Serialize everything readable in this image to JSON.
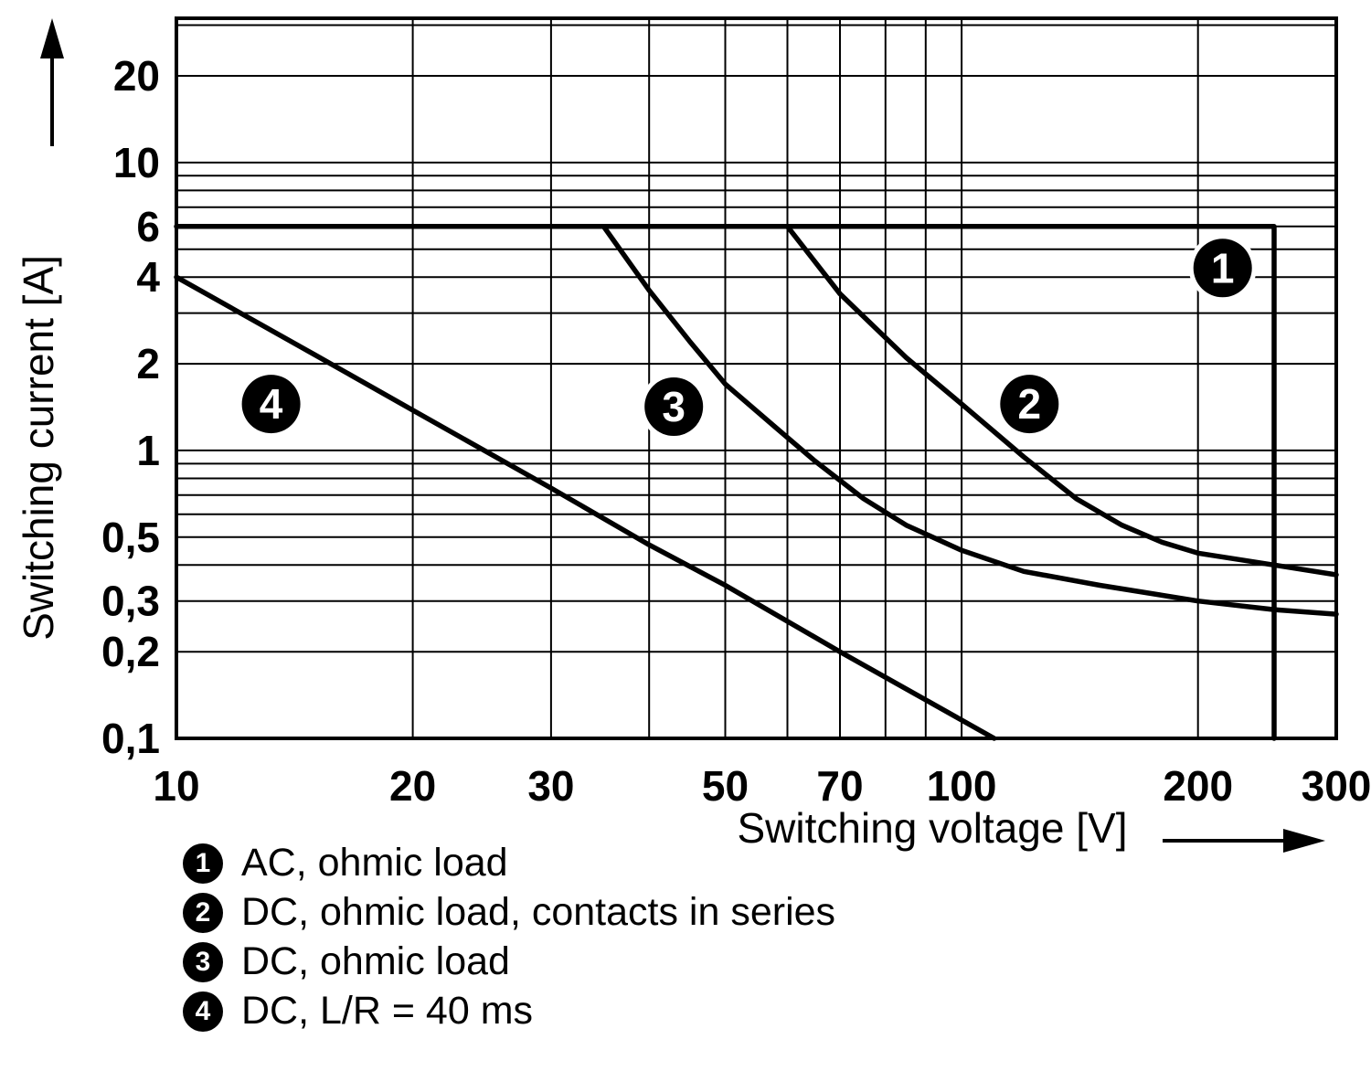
{
  "figure": {
    "background": "#ffffff",
    "ink_color": "#000000"
  },
  "chart_data": {
    "type": "line",
    "scale": "log-log",
    "grid": true,
    "legend_position": "bottom-left",
    "x_axis": {
      "label": "Switching voltage [V]",
      "scale": "log",
      "min": 10,
      "max": 300,
      "tick_values": [
        10,
        20,
        30,
        50,
        70,
        100,
        200,
        300
      ],
      "tick_labels": [
        "10",
        "20",
        "30",
        "50",
        "70",
        "100",
        "200",
        "300"
      ],
      "gridline_values": [
        10,
        20,
        30,
        40,
        50,
        60,
        70,
        80,
        90,
        100,
        200,
        300
      ]
    },
    "y_axis": {
      "label": "Switching current [A]",
      "scale": "log",
      "min": 0.1,
      "max": 31.7,
      "tick_values": [
        20,
        10,
        6,
        4,
        2,
        1,
        0.5,
        0.3,
        0.2,
        0.1
      ],
      "tick_labels": [
        "20",
        "10",
        "6",
        "4",
        "2",
        "1",
        "0,5",
        "0,3",
        "0,2",
        "0,1"
      ],
      "gridline_values": [
        0.1,
        0.2,
        0.3,
        0.4,
        0.5,
        0.6,
        0.7,
        0.8,
        0.9,
        1,
        2,
        3,
        4,
        5,
        6,
        7,
        8,
        9,
        10,
        20,
        30
      ]
    },
    "series": [
      {
        "id": "1",
        "name": "AC, ohmic load",
        "points": [
          [
            10,
            6
          ],
          [
            250,
            6
          ],
          [
            250,
            0.1
          ]
        ]
      },
      {
        "id": "2",
        "name": "DC, ohmic load, contacts in series",
        "points": [
          [
            60,
            6
          ],
          [
            70,
            3.5
          ],
          [
            85,
            2.1
          ],
          [
            100,
            1.45
          ],
          [
            120,
            0.95
          ],
          [
            140,
            0.68
          ],
          [
            160,
            0.55
          ],
          [
            180,
            0.48
          ],
          [
            200,
            0.44
          ],
          [
            250,
            0.4
          ],
          [
            300,
            0.37
          ]
        ]
      },
      {
        "id": "3",
        "name": "DC, ohmic load",
        "points": [
          [
            35,
            6
          ],
          [
            40,
            3.6
          ],
          [
            45,
            2.4
          ],
          [
            50,
            1.7
          ],
          [
            58,
            1.2
          ],
          [
            65,
            0.92
          ],
          [
            75,
            0.68
          ],
          [
            85,
            0.55
          ],
          [
            100,
            0.45
          ],
          [
            120,
            0.38
          ],
          [
            150,
            0.34
          ],
          [
            200,
            0.3
          ],
          [
            250,
            0.28
          ],
          [
            300,
            0.27
          ]
        ]
      },
      {
        "id": "4",
        "name": "DC, L/R = 40 ms",
        "points": [
          [
            10,
            4
          ],
          [
            15,
            2.15
          ],
          [
            20,
            1.38
          ],
          [
            30,
            0.74
          ],
          [
            40,
            0.47
          ],
          [
            50,
            0.34
          ],
          [
            70,
            0.2
          ],
          [
            90,
            0.136
          ],
          [
            110,
            0.1
          ]
        ]
      }
    ],
    "markers": [
      {
        "label": "1",
        "x": 215,
        "y": 4.3
      },
      {
        "label": "2",
        "x": 122,
        "y": 1.45
      },
      {
        "label": "3",
        "x": 43,
        "y": 1.42
      },
      {
        "label": "4",
        "x": 13.2,
        "y": 1.45
      }
    ],
    "legend": [
      {
        "badge": "1",
        "label": "AC, ohmic load"
      },
      {
        "badge": "2",
        "label": "DC, ohmic load, contacts in series"
      },
      {
        "badge": "3",
        "label": "DC, ohmic load"
      },
      {
        "badge": "4",
        "label": "DC, L/R = 40 ms"
      }
    ]
  }
}
